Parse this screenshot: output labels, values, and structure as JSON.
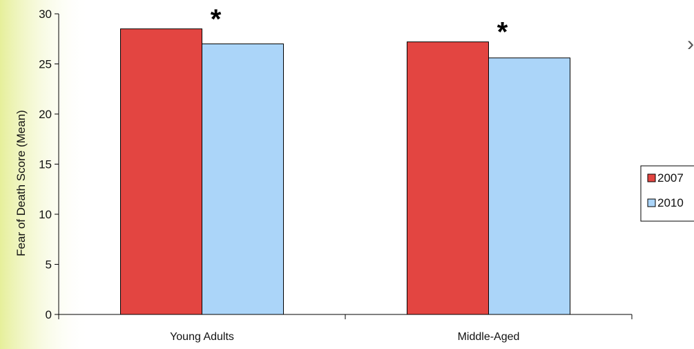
{
  "chart_data": {
    "type": "bar",
    "categories": [
      "Young Adults",
      "Middle-Aged"
    ],
    "series": [
      {
        "name": "2007",
        "values": [
          28.5,
          27.2
        ],
        "color": "#e34541"
      },
      {
        "name": "2010",
        "values": [
          27.0,
          25.6
        ],
        "color": "#abd5f9"
      }
    ],
    "ylabel": "Fear of Death Score (Mean)",
    "ylim": [
      0,
      30
    ],
    "yticks": [
      0,
      5,
      10,
      15,
      20,
      25,
      30
    ],
    "annotations": [
      "*",
      "*"
    ],
    "legend": "right",
    "grid": false
  }
}
